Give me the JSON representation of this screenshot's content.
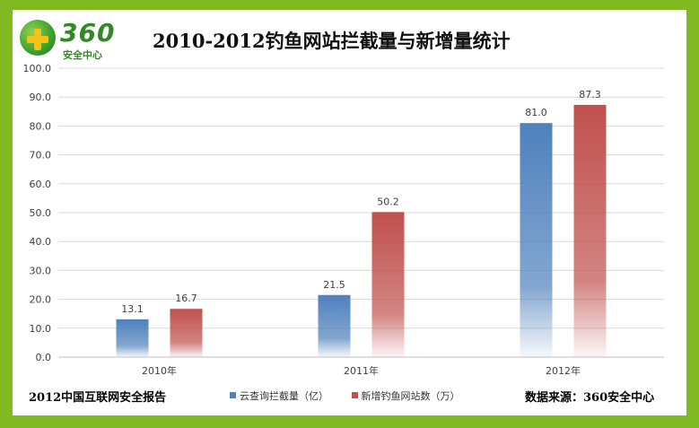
{
  "logo": {
    "mark": "360",
    "subtitle": "安全中心"
  },
  "chart_data": {
    "type": "bar",
    "title": "2010-2012钓鱼网站拦截量与新增量统计",
    "categories": [
      "2010年",
      "2011年",
      "2012年"
    ],
    "series": [
      {
        "name": "云查询拦截量（亿）",
        "values": [
          13.1,
          21.5,
          81.0
        ],
        "color": "#4f81bd"
      },
      {
        "name": "新增钓鱼网站数（万）",
        "values": [
          16.7,
          50.2,
          87.3
        ],
        "color": "#c0504d"
      }
    ],
    "ylim": [
      0,
      100
    ],
    "yticks": [
      "0.0",
      "10.0",
      "20.0",
      "30.0",
      "40.0",
      "50.0",
      "60.0",
      "70.0",
      "80.0",
      "90.0",
      "100.0"
    ],
    "grid": true,
    "legend": "bottom"
  },
  "footer": {
    "left": "2012中国互联网安全报告",
    "right": "数据来源：360安全中心"
  }
}
